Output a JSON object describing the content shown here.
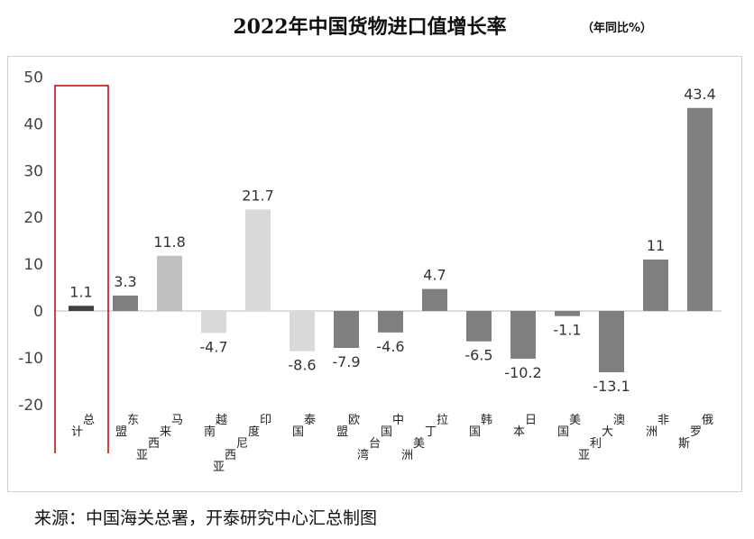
{
  "title": "2022年中国货物进口值增长率",
  "unit": "（年同比%）",
  "source": "来源：中国海关总署，开泰研究中心汇总制图",
  "chart_data": {
    "type": "bar",
    "title": "2022年中国货物进口值增长率",
    "ylim": [
      -20,
      50
    ],
    "yticks": [
      50,
      40,
      30,
      20,
      10,
      0,
      -10,
      -20
    ],
    "grid": false,
    "categories": [
      "总计",
      "东盟",
      "马来西亚",
      "越南",
      "印度尼西亚",
      "泰国",
      "欧盟",
      "中国台湾",
      "拉丁美洲",
      "韩国",
      "日本",
      "美国",
      "澳大利亚",
      "非洲",
      "俄罗斯"
    ],
    "values": [
      1.1,
      3.3,
      11.8,
      -4.7,
      21.7,
      -8.6,
      -7.9,
      -4.6,
      4.7,
      -6.5,
      -10.2,
      -1.1,
      -13.1,
      11,
      43.4
    ],
    "colors": [
      "#404040",
      "#7f7f7f",
      "#c0c0c0",
      "#d9d9d9",
      "#d9d9d9",
      "#d9d9d9",
      "#7f7f7f",
      "#7f7f7f",
      "#7f7f7f",
      "#7f7f7f",
      "#7f7f7f",
      "#7f7f7f",
      "#7f7f7f",
      "#7f7f7f",
      "#7f7f7f"
    ],
    "highlight": "总计",
    "highlight_color": "#c00000"
  }
}
